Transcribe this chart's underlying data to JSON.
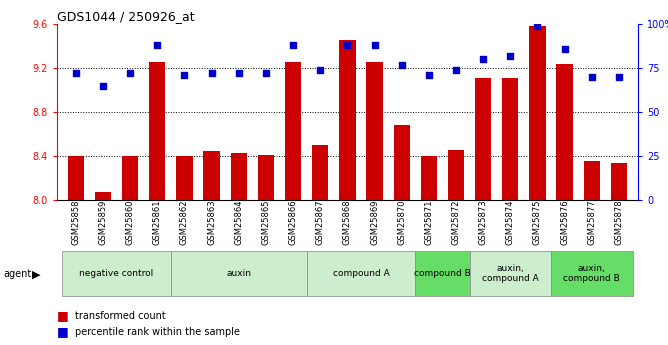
{
  "title": "GDS1044 / 250926_at",
  "samples": [
    "GSM25858",
    "GSM25859",
    "GSM25860",
    "GSM25861",
    "GSM25862",
    "GSM25863",
    "GSM25864",
    "GSM25865",
    "GSM25866",
    "GSM25867",
    "GSM25868",
    "GSM25869",
    "GSM25870",
    "GSM25871",
    "GSM25872",
    "GSM25873",
    "GSM25874",
    "GSM25875",
    "GSM25876",
    "GSM25877",
    "GSM25878"
  ],
  "red_values": [
    8.4,
    8.07,
    8.4,
    9.26,
    8.4,
    8.45,
    8.43,
    8.41,
    9.26,
    8.5,
    9.46,
    9.26,
    8.68,
    8.4,
    8.46,
    9.11,
    9.11,
    9.58,
    9.24,
    8.36,
    8.34
  ],
  "blue_values": [
    72,
    65,
    72,
    88,
    71,
    72,
    72,
    72,
    88,
    74,
    88,
    88,
    77,
    71,
    74,
    80,
    82,
    99,
    86,
    70,
    70
  ],
  "ylim_left": [
    8.0,
    9.6
  ],
  "ylim_right": [
    0,
    100
  ],
  "yticks_left": [
    8.0,
    8.4,
    8.8,
    9.2,
    9.6
  ],
  "yticks_right": [
    0,
    25,
    50,
    75,
    100
  ],
  "ytick_right_labels": [
    "0",
    "25",
    "50",
    "75",
    "100%"
  ],
  "groups": [
    {
      "label": "negative control",
      "start": 0,
      "end": 3,
      "color": "#cceecc"
    },
    {
      "label": "auxin",
      "start": 4,
      "end": 8,
      "color": "#cceecc"
    },
    {
      "label": "compound A",
      "start": 9,
      "end": 12,
      "color": "#cceecc"
    },
    {
      "label": "compound B",
      "start": 13,
      "end": 14,
      "color": "#66dd66"
    },
    {
      "label": "auxin,\ncompound A",
      "start": 15,
      "end": 17,
      "color": "#cceecc"
    },
    {
      "label": "auxin,\ncompound B",
      "start": 18,
      "end": 20,
      "color": "#66dd66"
    }
  ],
  "bar_color": "#cc0000",
  "dot_color": "#0000cc",
  "bar_width": 0.6,
  "legend_red": "transformed count",
  "legend_blue": "percentile rank within the sample",
  "agent_label": "agent"
}
